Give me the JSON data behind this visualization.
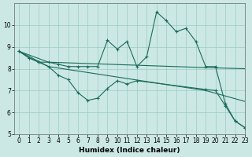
{
  "xlabel": "Humidex (Indice chaleur)",
  "background_color": "#cce8e4",
  "grid_color": "#99ccc4",
  "line_color": "#1a6b5a",
  "xlim": [
    -0.5,
    23
  ],
  "ylim": [
    5,
    11
  ],
  "yticks": [
    5,
    6,
    7,
    8,
    9,
    10
  ],
  "xticks": [
    0,
    1,
    2,
    3,
    4,
    5,
    6,
    7,
    8,
    9,
    10,
    11,
    12,
    13,
    14,
    15,
    16,
    17,
    18,
    19,
    20,
    21,
    22,
    23
  ],
  "line1_x": [
    0,
    1,
    2,
    3,
    4,
    5,
    6,
    7,
    8,
    9,
    10,
    11,
    12,
    13,
    14,
    15,
    16,
    17,
    18,
    19,
    20,
    21,
    22,
    23
  ],
  "line1_y": [
    8.8,
    8.5,
    8.3,
    8.3,
    8.2,
    8.1,
    8.1,
    8.1,
    8.1,
    9.3,
    8.9,
    9.25,
    8.1,
    8.55,
    10.6,
    10.2,
    9.7,
    9.85,
    9.25,
    8.1,
    8.1,
    6.4,
    5.6,
    5.3
  ],
  "line1_markers": [
    0,
    1,
    2,
    3,
    4,
    5,
    6,
    7,
    8,
    9,
    10,
    11,
    12,
    13,
    14,
    15,
    16,
    17,
    18,
    19,
    20,
    21,
    22,
    23
  ],
  "line2_x": [
    0,
    3,
    19,
    23
  ],
  "line2_y": [
    8.8,
    8.3,
    8.05,
    8.0
  ],
  "line3_x": [
    0,
    3,
    19,
    23
  ],
  "line3_y": [
    8.8,
    8.1,
    7.0,
    6.5
  ],
  "line4_x": [
    0,
    1,
    2,
    3,
    4,
    5,
    6,
    7,
    8,
    9,
    10,
    11,
    12,
    19,
    20,
    21,
    22,
    23
  ],
  "line4_y": [
    8.8,
    8.5,
    8.3,
    8.1,
    7.7,
    7.5,
    6.9,
    6.55,
    6.65,
    7.1,
    7.45,
    7.3,
    7.45,
    7.05,
    7.0,
    6.3,
    5.6,
    5.3
  ],
  "line4_markers": [
    0,
    1,
    2,
    3,
    4,
    5,
    6,
    7,
    8,
    9,
    10,
    11,
    12,
    19,
    20,
    21,
    22,
    23
  ]
}
